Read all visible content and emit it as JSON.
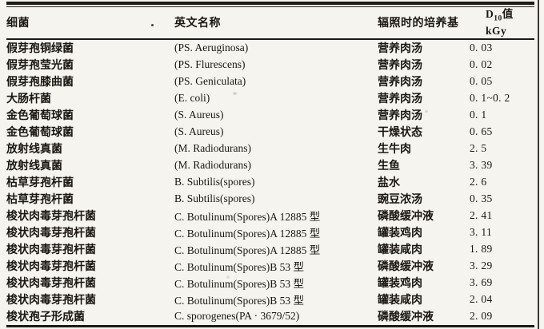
{
  "page": {
    "background_color": "#f5f4ef",
    "ink_color": "#1b1712"
  },
  "table": {
    "header": {
      "bacteria": "细菌",
      "english_name": "英文名称",
      "medium": "辐照时的培养基",
      "d10_prefix": "D",
      "d10_sub": "10",
      "d10_suffix": "值",
      "d10_unit": "kGy"
    },
    "rows": [
      [
        "假芽孢铜绿菌",
        "(PS. Aeruginosa)",
        "营养肉汤",
        "0. 03"
      ],
      [
        "假芽孢莹光菌",
        "(PS. Flurescens)",
        "营养肉汤",
        "0. 02"
      ],
      [
        "假芽孢膝曲菌",
        "(PS. Geniculata)",
        "营养肉汤",
        "0. 05"
      ],
      [
        "大肠杆菌",
        "(E. coli)",
        "营养肉汤",
        "0. 1~0. 2"
      ],
      [
        "金色葡萄球菌",
        "(S. Aureus)",
        "营养肉汤",
        "0. 1"
      ],
      [
        "金色葡萄球菌",
        "(S. Aureus)",
        "干燥状态",
        "0. 65"
      ],
      [
        "放射线真菌",
        "(M. Radiodurans)",
        "生牛肉",
        "2. 5"
      ],
      [
        "放射线真菌",
        "(M. Radiodurans)",
        "生鱼",
        "3. 39"
      ],
      [
        "枯草芽孢杆菌",
        "B. Subtilis(spores)",
        "盐水",
        "2. 6"
      ],
      [
        "枯草芽孢杆菌",
        "B. Subtilis(spores)",
        "豌豆浓汤",
        "0. 35"
      ],
      [
        "梭状肉毒芽孢杆菌",
        "C. Botulinum(Spores)A 12885 型",
        "磷酸缓冲液",
        "2. 41"
      ],
      [
        "梭状肉毒芽孢杆菌",
        "C. Botulinum(Spores)A 12885 型",
        "罐装鸡肉",
        "3. 11"
      ],
      [
        "梭状肉毒芽孢杆菌",
        "C. Botulinum(Spores)A 12885 型",
        "罐装咸肉",
        "1. 89"
      ],
      [
        "梭状肉毒芽孢杆菌",
        "C. Botulinum(Spores)B 53 型",
        "磷酸缓冲液",
        "3. 29"
      ],
      [
        "梭状肉毒芽孢杆菌",
        "C. Botulinum(Spores)B 53 型",
        "罐装鸡肉",
        "3. 69"
      ],
      [
        "梭状肉毒芽孢杆菌",
        "C. Botulinum(Spores)B 53 型",
        "罐装咸肉",
        "2. 04"
      ],
      [
        "梭状孢子形成菌",
        "C. sporogenes(PA · 3679/52)",
        "磷酸缓冲液",
        "2. 09"
      ]
    ]
  }
}
